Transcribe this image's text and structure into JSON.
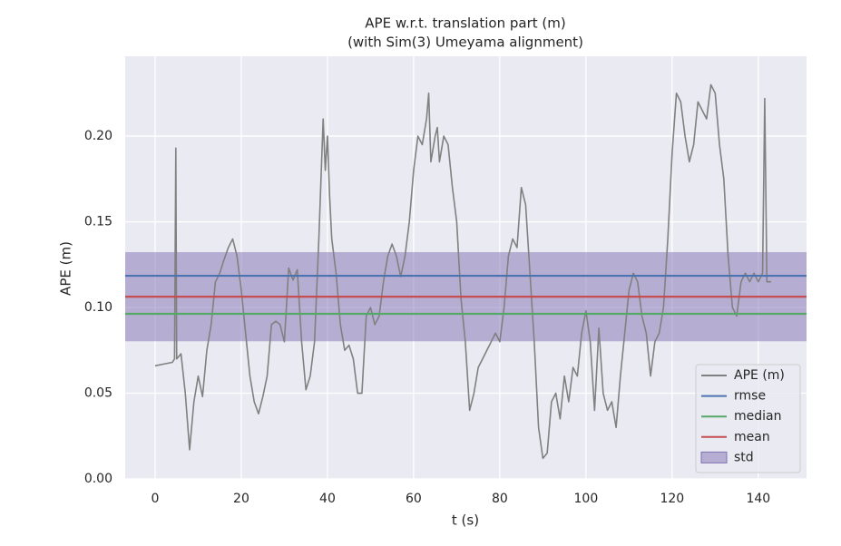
{
  "chart_data": {
    "type": "line",
    "title": "APE w.r.t. translation part (m)",
    "subtitle": "(with Sim(3) Umeyama alignment)",
    "xlabel": "t (s)",
    "ylabel": "APE (m)",
    "xlim": [
      -6.95,
      151.2
    ],
    "ylim": [
      0,
      0.2466
    ],
    "xticks": [
      0,
      20,
      40,
      60,
      80,
      100,
      120,
      140
    ],
    "yticks": [
      {
        "value": 0,
        "label": "0.00"
      },
      0.05,
      {
        "value": 0.1,
        "label": "0.10"
      },
      0.15,
      {
        "value": 0.2,
        "label": "0.20"
      }
    ],
    "grid": true,
    "legend": "lower right",
    "series": [
      {
        "name": "APE (m)",
        "color": "#808080",
        "x": [
          0,
          2,
          4,
          4.5,
          4.8,
          5,
          6,
          7,
          8,
          9,
          10,
          11,
          12,
          13,
          14,
          15,
          16,
          17,
          18,
          19,
          20,
          21,
          22,
          23,
          24,
          25,
          26,
          27,
          28,
          29,
          30,
          31,
          32,
          33,
          34,
          35,
          36,
          37,
          38,
          39,
          39.5,
          40,
          40.5,
          41,
          42,
          43,
          44,
          45,
          46,
          47,
          48,
          49,
          50,
          51,
          52,
          53,
          54,
          55,
          56,
          57,
          58,
          59,
          60,
          61,
          62,
          63,
          63.5,
          64,
          65,
          65.5,
          66,
          67,
          68,
          69,
          70,
          71,
          72,
          73,
          74,
          75,
          76,
          77,
          78,
          79,
          80,
          81,
          82,
          83,
          84,
          85,
          86,
          87,
          88,
          89,
          90,
          91,
          92,
          93,
          94,
          95,
          96,
          97,
          98,
          99,
          100,
          101,
          102,
          103,
          104,
          105,
          106,
          107,
          108,
          109,
          110,
          111,
          112,
          113,
          114,
          115,
          116,
          117,
          118,
          119,
          120,
          121,
          122,
          123,
          124,
          125,
          126,
          127,
          128,
          129,
          130,
          131,
          132,
          133,
          134,
          135,
          136,
          137,
          138,
          139,
          140,
          141,
          141.5,
          142,
          143
        ],
        "values": [
          0.066,
          0.067,
          0.068,
          0.07,
          0.193,
          0.07,
          0.073,
          0.05,
          0.017,
          0.045,
          0.06,
          0.048,
          0.075,
          0.09,
          0.115,
          0.12,
          0.128,
          0.135,
          0.14,
          0.13,
          0.11,
          0.085,
          0.06,
          0.045,
          0.038,
          0.048,
          0.06,
          0.09,
          0.092,
          0.09,
          0.08,
          0.123,
          0.116,
          0.122,
          0.08,
          0.052,
          0.06,
          0.08,
          0.14,
          0.21,
          0.18,
          0.2,
          0.165,
          0.14,
          0.12,
          0.09,
          0.075,
          0.078,
          0.07,
          0.05,
          0.05,
          0.095,
          0.1,
          0.09,
          0.095,
          0.115,
          0.13,
          0.137,
          0.13,
          0.118,
          0.13,
          0.15,
          0.18,
          0.2,
          0.195,
          0.21,
          0.225,
          0.185,
          0.2,
          0.205,
          0.185,
          0.2,
          0.195,
          0.17,
          0.15,
          0.105,
          0.08,
          0.04,
          0.05,
          0.065,
          0.07,
          0.075,
          0.08,
          0.085,
          0.08,
          0.1,
          0.13,
          0.14,
          0.135,
          0.17,
          0.16,
          0.12,
          0.08,
          0.03,
          0.012,
          0.015,
          0.045,
          0.05,
          0.035,
          0.06,
          0.045,
          0.065,
          0.06,
          0.085,
          0.098,
          0.08,
          0.04,
          0.088,
          0.05,
          0.04,
          0.045,
          0.03,
          0.06,
          0.085,
          0.11,
          0.12,
          0.115,
          0.095,
          0.085,
          0.06,
          0.08,
          0.085,
          0.1,
          0.14,
          0.19,
          0.225,
          0.22,
          0.2,
          0.185,
          0.195,
          0.22,
          0.215,
          0.21,
          0.23,
          0.225,
          0.195,
          0.175,
          0.13,
          0.1,
          0.095,
          0.115,
          0.12,
          0.115,
          0.12,
          0.115,
          0.12,
          0.222,
          0.115,
          0.115
        ]
      }
    ],
    "stats": [
      {
        "name": "rmse",
        "color": "#4c72b0",
        "value": 0.1185
      },
      {
        "name": "median",
        "color": "#55a868",
        "value": 0.0963
      },
      {
        "name": "mean",
        "color": "#c44e52",
        "value": 0.1063
      }
    ],
    "std": {
      "name": "std",
      "color": "#8172b2",
      "value": 0.026
    }
  }
}
